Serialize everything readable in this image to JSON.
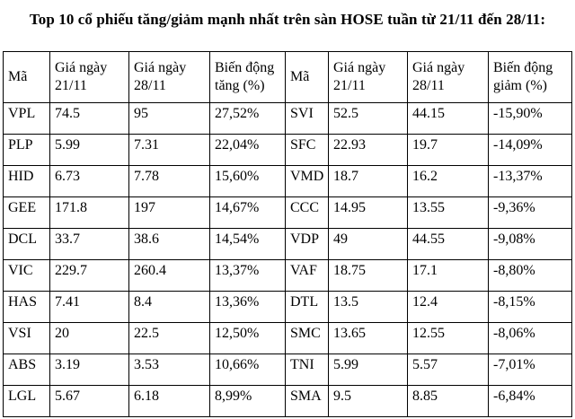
{
  "title": "Top 10 cổ phiếu tăng/giảm mạnh nhất trên sàn HOSE tuần từ 21/11 đến 28/11:",
  "colors": {
    "text": "#000000",
    "border": "#000000",
    "background": "#ffffff"
  },
  "table": {
    "headers": [
      "Mã",
      "Giá ngày 21/11",
      "Giá ngày 28/11",
      "Biến động tăng (%)",
      "Mã",
      "Giá ngày 21/11",
      "Giá ngày 28/11",
      "Biến động giảm (%)"
    ],
    "gainers": [
      {
        "code": "VPL",
        "price_21_11": "74.5",
        "price_28_11": "95",
        "change_pct": "27,52%"
      },
      {
        "code": "PLP",
        "price_21_11": "5.99",
        "price_28_11": "7.31",
        "change_pct": "22,04%"
      },
      {
        "code": "HID",
        "price_21_11": "6.73",
        "price_28_11": "7.78",
        "change_pct": "15,60%"
      },
      {
        "code": "GEE",
        "price_21_11": "171.8",
        "price_28_11": "197",
        "change_pct": "14,67%"
      },
      {
        "code": "DCL",
        "price_21_11": "33.7",
        "price_28_11": "38.6",
        "change_pct": "14,54%"
      },
      {
        "code": "VIC",
        "price_21_11": "229.7",
        "price_28_11": "260.4",
        "change_pct": "13,37%"
      },
      {
        "code": "HAS",
        "price_21_11": "7.41",
        "price_28_11": "8.4",
        "change_pct": "13,36%"
      },
      {
        "code": "VSI",
        "price_21_11": "20",
        "price_28_11": "22.5",
        "change_pct": "12,50%"
      },
      {
        "code": "ABS",
        "price_21_11": "3.19",
        "price_28_11": "3.53",
        "change_pct": "10,66%"
      },
      {
        "code": "LGL",
        "price_21_11": "5.67",
        "price_28_11": "6.18",
        "change_pct": "8,99%"
      }
    ],
    "losers": [
      {
        "code": "SVI",
        "price_21_11": "52.5",
        "price_28_11": "44.15",
        "change_pct": "-15,90%"
      },
      {
        "code": "SFC",
        "price_21_11": "22.93",
        "price_28_11": "19.7",
        "change_pct": "-14,09%"
      },
      {
        "code": "VMD",
        "price_21_11": "18.7",
        "price_28_11": "16.2",
        "change_pct": "-13,37%"
      },
      {
        "code": "CCC",
        "price_21_11": "14.95",
        "price_28_11": "13.55",
        "change_pct": "-9,36%"
      },
      {
        "code": "VDP",
        "price_21_11": "49",
        "price_28_11": "44.55",
        "change_pct": "-9,08%"
      },
      {
        "code": "VAF",
        "price_21_11": "18.75",
        "price_28_11": "17.1",
        "change_pct": "-8,80%"
      },
      {
        "code": "DTL",
        "price_21_11": "13.5",
        "price_28_11": "12.4",
        "change_pct": "-8,15%"
      },
      {
        "code": "SMC",
        "price_21_11": "13.65",
        "price_28_11": "12.55",
        "change_pct": "-8,06%"
      },
      {
        "code": "TNI",
        "price_21_11": "5.99",
        "price_28_11": "5.57",
        "change_pct": "-7,01%"
      },
      {
        "code": "SMA",
        "price_21_11": "9.5",
        "price_28_11": "8.85",
        "change_pct": "-6,84%"
      }
    ]
  }
}
